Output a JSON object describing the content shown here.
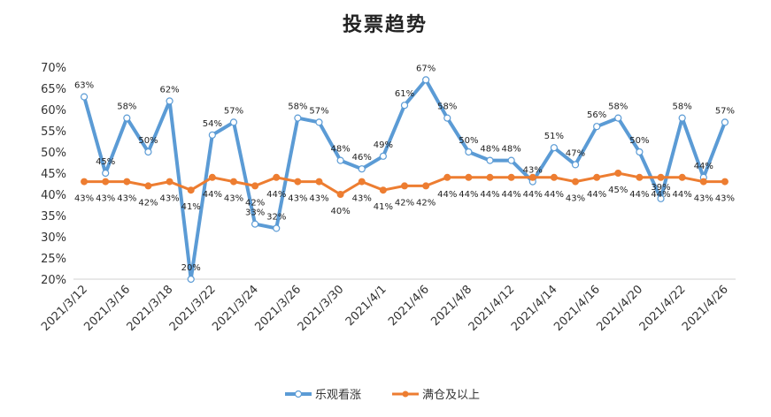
{
  "chart_data": {
    "type": "line",
    "title": "投票趋势",
    "xlabel": "",
    "ylabel": "",
    "ylim": [
      20,
      70
    ],
    "yticks": [
      "20%",
      "25%",
      "30%",
      "35%",
      "40%",
      "45%",
      "50%",
      "55%",
      "60%",
      "65%",
      "70%"
    ],
    "grid": false,
    "legend_position": "bottom",
    "x": [
      "2021/3/12",
      "2021/3/15",
      "2021/3/16",
      "2021/3/17",
      "2021/3/18",
      "2021/3/19",
      "2021/3/22",
      "2021/3/23",
      "2021/3/24",
      "2021/3/25",
      "2021/3/26",
      "2021/3/29",
      "2021/3/30",
      "2021/3/31",
      "2021/4/1",
      "2021/4/2",
      "2021/4/6",
      "2021/4/7",
      "2021/4/8",
      "2021/4/9",
      "2021/4/12",
      "2021/4/13",
      "2021/4/14",
      "2021/4/15",
      "2021/4/16",
      "2021/4/19",
      "2021/4/20",
      "2021/4/21",
      "2021/4/22",
      "2021/4/23",
      "2021/4/26"
    ],
    "xticks_shown": [
      "2021/3/12",
      "2021/3/16",
      "2021/3/18",
      "2021/3/22",
      "2021/3/24",
      "2021/3/26",
      "2021/3/30",
      "2021/4/1",
      "2021/4/6",
      "2021/4/8",
      "2021/4/12",
      "2021/4/14",
      "2021/4/16",
      "2021/4/20",
      "2021/4/22",
      "2021/4/26"
    ],
    "series": [
      {
        "name": "乐观看涨",
        "color": "#5b9bd5",
        "values": [
          63,
          45,
          58,
          50,
          62,
          20,
          54,
          57,
          33,
          32,
          58,
          57,
          48,
          46,
          49,
          61,
          67,
          58,
          50,
          48,
          48,
          43,
          51,
          47,
          56,
          58,
          50,
          39,
          58,
          44,
          57
        ],
        "labels": [
          "63%",
          "45%",
          "58%",
          "50%",
          "62%",
          "20%",
          "54%",
          "57%",
          "33%",
          "32%",
          "58%",
          "57%",
          "48%",
          "46%",
          "49%",
          "61%",
          "67%",
          "58%",
          "50%",
          "48%",
          "48%",
          "43%",
          "51%",
          "47%",
          "56%",
          "58%",
          "50%",
          "39%",
          "58%",
          "44%",
          "57%"
        ]
      },
      {
        "name": "满仓及以上",
        "color": "#ed7d31",
        "values": [
          43,
          43,
          43,
          42,
          43,
          41,
          44,
          43,
          42,
          44,
          43,
          43,
          40,
          43,
          41,
          42,
          42,
          44,
          44,
          44,
          44,
          44,
          44,
          43,
          44,
          45,
          44,
          44,
          44,
          43,
          43
        ],
        "labels": [
          "43%",
          "43%",
          "43%",
          "42%",
          "43%",
          "41%",
          "44%",
          "43%",
          "42%",
          "44%",
          "43%",
          "43%",
          "40%",
          "43%",
          "41%",
          "42%",
          "42%",
          "44%",
          "44%",
          "44%",
          "44%",
          "44%",
          "44%",
          "43%",
          "44%",
          "45%",
          "44%",
          "44%",
          "44%",
          "43%",
          "43%"
        ]
      }
    ]
  }
}
